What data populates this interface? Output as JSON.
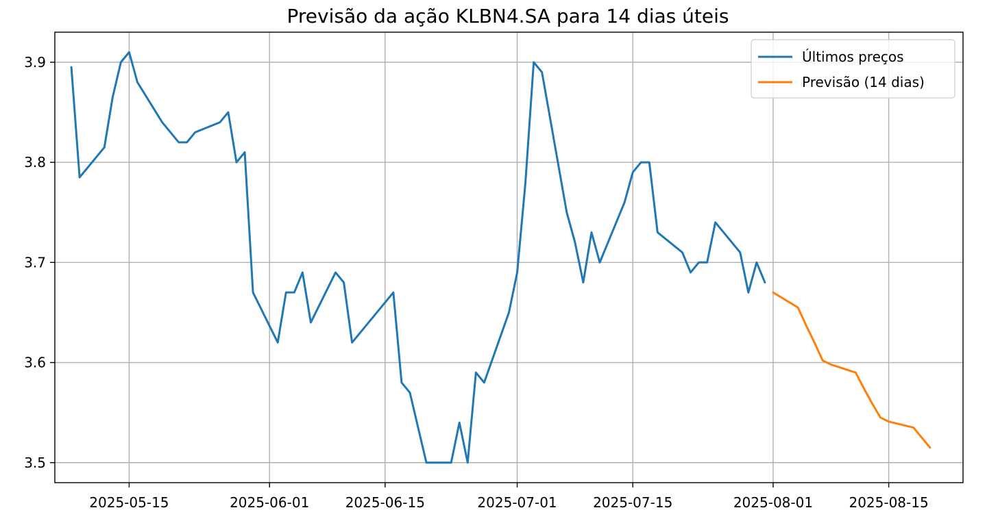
{
  "chart_data": {
    "type": "line",
    "title": "Previsão da ação KLBN4.SA para 14 dias úteis",
    "xlabel": "",
    "ylabel": "",
    "x_type": "date",
    "xlim": [
      "2025-05-06",
      "2025-08-24"
    ],
    "ylim": [
      3.48,
      3.93
    ],
    "xticks": [
      "2025-05-15",
      "2025-06-01",
      "2025-06-15",
      "2025-07-01",
      "2025-07-15",
      "2025-08-01",
      "2025-08-15"
    ],
    "yticks": [
      3.5,
      3.6,
      3.7,
      3.8,
      3.9
    ],
    "ytick_labels": [
      "3.5",
      "3.6",
      "3.7",
      "3.8",
      "3.9"
    ],
    "grid": true,
    "legend_position": "top-right",
    "series": [
      {
        "name": "Últimos preços",
        "color": "#1f77b4",
        "x": [
          "2025-05-08",
          "2025-05-09",
          "2025-05-12",
          "2025-05-13",
          "2025-05-14",
          "2025-05-15",
          "2025-05-16",
          "2025-05-19",
          "2025-05-20",
          "2025-05-21",
          "2025-05-22",
          "2025-05-23",
          "2025-05-26",
          "2025-05-27",
          "2025-05-28",
          "2025-05-29",
          "2025-05-30",
          "2025-06-02",
          "2025-06-03",
          "2025-06-04",
          "2025-06-05",
          "2025-06-06",
          "2025-06-09",
          "2025-06-10",
          "2025-06-11",
          "2025-06-16",
          "2025-06-17",
          "2025-06-18",
          "2025-06-20",
          "2025-06-23",
          "2025-06-24",
          "2025-06-25",
          "2025-06-26",
          "2025-06-27",
          "2025-06-30",
          "2025-07-01",
          "2025-07-02",
          "2025-07-03",
          "2025-07-04",
          "2025-07-07",
          "2025-07-08",
          "2025-07-09",
          "2025-07-10",
          "2025-07-11",
          "2025-07-14",
          "2025-07-15",
          "2025-07-16",
          "2025-07-17",
          "2025-07-18",
          "2025-07-21",
          "2025-07-22",
          "2025-07-23",
          "2025-07-24",
          "2025-07-25",
          "2025-07-28",
          "2025-07-29",
          "2025-07-30",
          "2025-07-31"
        ],
        "values": [
          3.895,
          3.785,
          3.815,
          3.865,
          3.9,
          3.91,
          3.88,
          3.84,
          3.83,
          3.82,
          3.82,
          3.83,
          3.84,
          3.85,
          3.8,
          3.81,
          3.67,
          3.62,
          3.67,
          3.67,
          3.69,
          3.64,
          3.69,
          3.68,
          3.62,
          3.67,
          3.58,
          3.57,
          3.5,
          3.5,
          3.54,
          3.5,
          3.59,
          3.58,
          3.65,
          3.69,
          3.78,
          3.9,
          3.89,
          3.75,
          3.72,
          3.68,
          3.73,
          3.7,
          3.76,
          3.79,
          3.8,
          3.8,
          3.73,
          3.71,
          3.69,
          3.7,
          3.7,
          3.74,
          3.71,
          3.67,
          3.7,
          3.68
        ]
      },
      {
        "name": "Previsão (14 dias)",
        "color": "#ff7f0e",
        "x": [
          "2025-08-01",
          "2025-08-04",
          "2025-08-05",
          "2025-08-06",
          "2025-08-07",
          "2025-08-08",
          "2025-08-11",
          "2025-08-12",
          "2025-08-13",
          "2025-08-14",
          "2025-08-15",
          "2025-08-18",
          "2025-08-19",
          "2025-08-20"
        ],
        "values": [
          3.67,
          3.655,
          3.637,
          3.62,
          3.602,
          3.598,
          3.59,
          3.574,
          3.559,
          3.545,
          3.541,
          3.535,
          3.525,
          3.515
        ]
      }
    ]
  }
}
